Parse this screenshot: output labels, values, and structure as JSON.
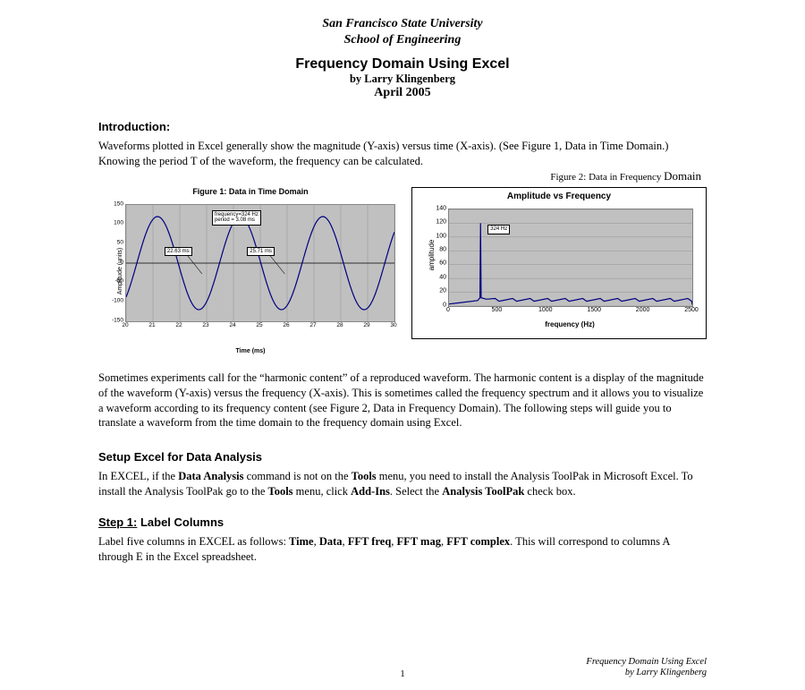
{
  "header": {
    "university": "San Francisco State University",
    "school": "School of Engineering",
    "title": "Frequency Domain Using Excel",
    "author_line": "by Larry Klingenberg",
    "date": "April 2005"
  },
  "intro": {
    "heading": "Introduction:",
    "text": "Waveforms plotted in Excel generally show the magnitude (Y-axis) versus time (X-axis).  (See Figure 1, Data in Time Domain.)  Knowing the period T of the waveform, the frequency can be calculated."
  },
  "figure1": {
    "caption": "Figure 1:  Data in Time Domain",
    "ylabel": "Amplitude (units)",
    "xlabel": "Time (ms)",
    "xlim": [
      20,
      30
    ],
    "xtick_step": 1,
    "ylim": [
      -150,
      150
    ],
    "yticks": [
      -150,
      -100,
      -50,
      0,
      50,
      100,
      150
    ],
    "line_color": "#000080",
    "background_color": "#c0c0c0",
    "sine": {
      "amplitude": 120,
      "frequency_hz": 324,
      "period_ms": 3.08
    },
    "annotations": {
      "freq_box": {
        "line1": "frequency=324 Hz",
        "line2": "period = 3.08 ms"
      },
      "marker_a": "22.63 ms",
      "marker_b": "25.71 ms"
    }
  },
  "figure2": {
    "caption_prefix": "Figure 2: Data in Frequency ",
    "caption_domain": "Domain",
    "title": "Amplitude vs Frequency",
    "ylabel": "amplitude",
    "xlabel": "frequency (Hz)",
    "xlim": [
      0,
      2500
    ],
    "xticks": [
      0,
      500,
      1000,
      1500,
      2000,
      2500
    ],
    "ylim": [
      0,
      140
    ],
    "yticks": [
      0,
      20,
      40,
      60,
      80,
      100,
      120,
      140
    ],
    "line_color": "#000080",
    "background_color": "#c0c0c0",
    "peak": {
      "freq": 324,
      "amp": 120,
      "label": "324 Hz"
    },
    "noise_level": 8
  },
  "harmonic_para": "Sometimes experiments call for the “harmonic content” of a reproduced waveform.  The harmonic content is a display of the magnitude of the waveform (Y-axis) versus the frequency (X-axis).  This is sometimes called the frequency spectrum and it allows you to visualize a waveform according to its frequency content (see Figure 2, Data in Frequency Domain).  The following steps will guide you to translate a waveform from the time domain to the frequency domain using Excel.",
  "setup": {
    "heading": "Setup Excel for Data Analysis",
    "p_a": "In EXCEL, if the ",
    "p_b": "Data Analysis",
    "p_c": " command is not on the ",
    "p_d": "Tools",
    "p_e": " menu, you need to install the Analysis ToolPak in Microsoft Excel.  To install the Analysis ToolPak go to the ",
    "p_f": "Tools",
    "p_g": " menu, click ",
    "p_h": "Add-Ins",
    "p_i": ".  Select the ",
    "p_j": "Analysis ToolPak",
    "p_k": " check box."
  },
  "step1": {
    "heading_u": "Step 1:",
    "heading_rest": " Label Columns",
    "p_a": "Label five columns in EXCEL as follows: ",
    "p_b": "Time",
    "p_c": ", ",
    "p_d": "Data",
    "p_e": ", ",
    "p_f": "FFT freq",
    "p_g": ", ",
    "p_h": "FFT mag",
    "p_i": ", ",
    "p_j": "FFT complex",
    "p_k": ". This will correspond to columns A through E in the Excel spreadsheet."
  },
  "footer": {
    "page": "1",
    "credit_line1": "Frequency Domain Using Excel",
    "credit_line2": "by Larry Klingenberg"
  }
}
